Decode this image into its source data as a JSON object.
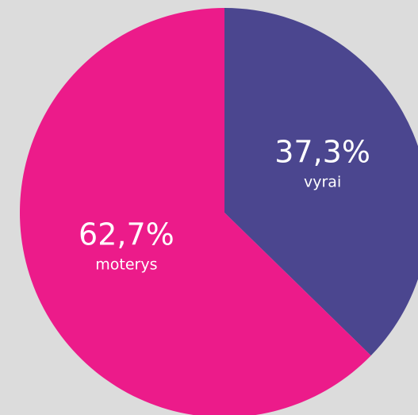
{
  "chart_data": {
    "type": "pie",
    "categories": [
      "vyrai",
      "moterys"
    ],
    "values": [
      37.3,
      62.7
    ],
    "value_labels": [
      "37,3%",
      "62,7%"
    ],
    "colors": [
      "#4b468f",
      "#ec1b8a"
    ]
  }
}
